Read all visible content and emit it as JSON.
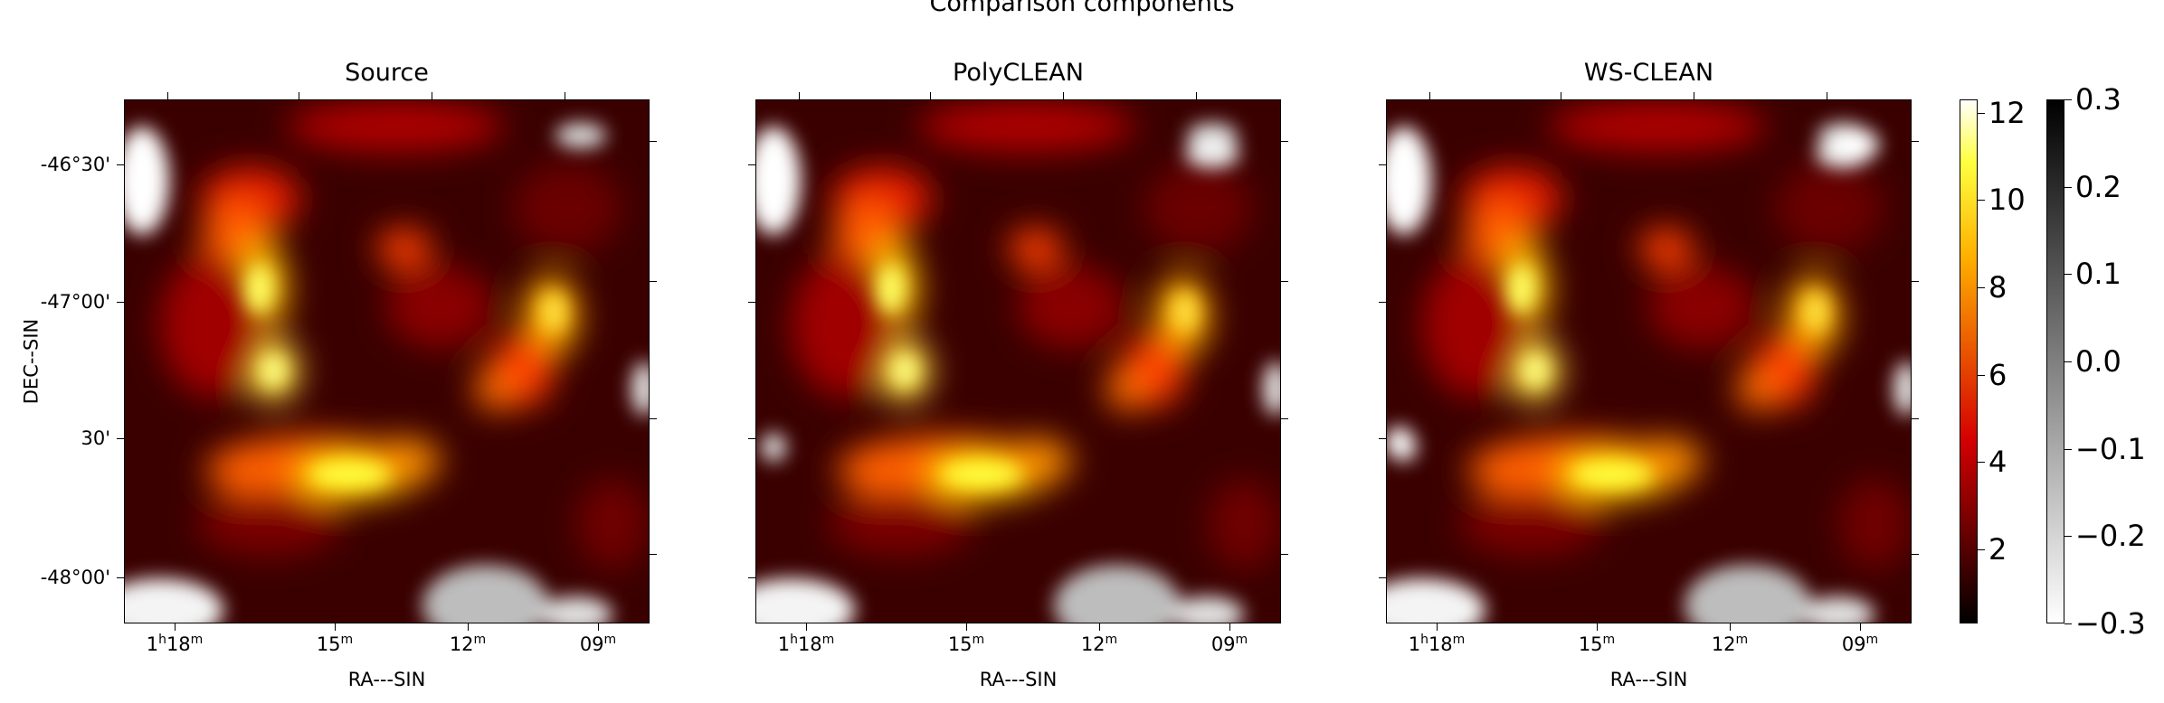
{
  "figure": {
    "title": "Comparison components"
  },
  "chart_data": [
    {
      "type": "heatmap",
      "title": "Source",
      "xlabel": "RA---SIN",
      "ylabel": "DEC--SIN",
      "x_ticks": [
        {
          "h": "1",
          "m": "18"
        },
        {
          "m": "15"
        },
        {
          "m": "12"
        },
        {
          "m": "09"
        }
      ],
      "y_ticks": [
        "-46°30'",
        "-47°00'",
        "30'",
        "-48°00'"
      ],
      "colorbar": "hot",
      "vmin": 0.3,
      "vmax": 12.3,
      "negative_colormap": "gray_r"
    },
    {
      "type": "heatmap",
      "title": "PolyCLEAN",
      "xlabel": "RA---SIN",
      "x_ticks": [
        {
          "h": "1",
          "m": "18"
        },
        {
          "m": "15"
        },
        {
          "m": "12"
        },
        {
          "m": "09"
        }
      ],
      "colorbar": "hot"
    },
    {
      "type": "heatmap",
      "title": "WS-CLEAN",
      "xlabel": "RA---SIN",
      "x_ticks": [
        {
          "h": "1",
          "m": "18"
        },
        {
          "m": "15"
        },
        {
          "m": "12"
        },
        {
          "m": "09"
        }
      ],
      "colorbar": "hot"
    }
  ],
  "colorbars": {
    "hot": {
      "ticks": [
        "12",
        "10",
        "8",
        "6",
        "4",
        "2"
      ],
      "values": [
        12,
        10,
        8,
        6,
        4,
        2
      ],
      "min": 0.3,
      "max": 12.3
    },
    "gray": {
      "ticks": [
        "0.3",
        "0.2",
        "0.1",
        "0.0",
        "−0.1",
        "−0.2",
        "−0.3"
      ],
      "values": [
        0.3,
        0.2,
        0.1,
        0.0,
        -0.1,
        -0.2,
        -0.3
      ],
      "min": -0.3,
      "max": 0.3
    }
  },
  "colors": {
    "hot_low": "#000000",
    "hot_mid": "#e60000",
    "hot_high": "#ffff00",
    "hot_top": "#ffffff"
  }
}
